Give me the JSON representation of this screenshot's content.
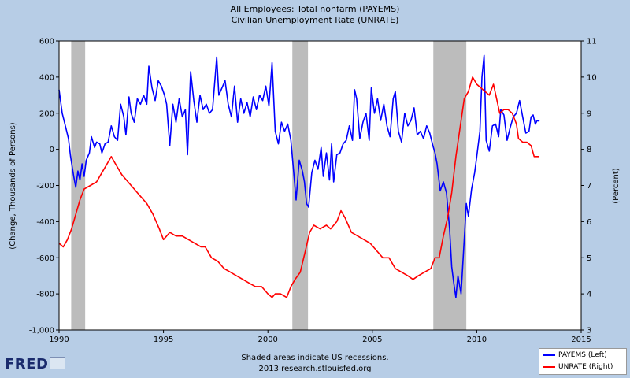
{
  "chart_data": {
    "type": "line",
    "title": "All Employees: Total nonfarm (PAYEMS)",
    "subtitle": "Civilian Unemployment Rate (UNRATE)",
    "ylabel_left": "(Change, Thousands of Persons)",
    "ylabel_right": "(Percent)",
    "xlim": [
      1990,
      2015
    ],
    "ylim_left": [
      -1000,
      600
    ],
    "ylim_right": [
      3,
      11
    ],
    "x_ticks": [
      "1990",
      "1995",
      "2000",
      "2005",
      "2010",
      "2015"
    ],
    "y_left_ticks": [
      "600",
      "400",
      "200",
      "0",
      "-200",
      "-400",
      "-600",
      "-800",
      "-1,000"
    ],
    "y_right_ticks": [
      "11",
      "10",
      "9",
      "8",
      "7",
      "6",
      "5",
      "4",
      "3"
    ],
    "recessions": [
      [
        1990.58,
        1991.25
      ],
      [
        2001.17,
        2001.92
      ],
      [
        2007.92,
        2009.5
      ]
    ],
    "series": [
      {
        "name": "PAYEMS (Left)",
        "color": "#0000ff",
        "points": [
          [
            1990.0,
            330
          ],
          [
            1990.15,
            200
          ],
          [
            1990.3,
            130
          ],
          [
            1990.45,
            60
          ],
          [
            1990.55,
            -40
          ],
          [
            1990.7,
            -150
          ],
          [
            1990.8,
            -210
          ],
          [
            1990.9,
            -120
          ],
          [
            1991.0,
            -170
          ],
          [
            1991.1,
            -80
          ],
          [
            1991.2,
            -150
          ],
          [
            1991.3,
            -60
          ],
          [
            1991.45,
            -20
          ],
          [
            1991.55,
            70
          ],
          [
            1991.7,
            10
          ],
          [
            1991.8,
            40
          ],
          [
            1991.95,
            30
          ],
          [
            1992.05,
            -20
          ],
          [
            1992.2,
            30
          ],
          [
            1992.35,
            40
          ],
          [
            1992.5,
            130
          ],
          [
            1992.65,
            70
          ],
          [
            1992.8,
            50
          ],
          [
            1992.95,
            250
          ],
          [
            1993.1,
            180
          ],
          [
            1993.2,
            80
          ],
          [
            1993.35,
            290
          ],
          [
            1993.45,
            200
          ],
          [
            1993.6,
            150
          ],
          [
            1993.75,
            280
          ],
          [
            1993.9,
            250
          ],
          [
            1994.05,
            300
          ],
          [
            1994.2,
            250
          ],
          [
            1994.3,
            460
          ],
          [
            1994.45,
            340
          ],
          [
            1994.6,
            270
          ],
          [
            1994.75,
            380
          ],
          [
            1994.9,
            350
          ],
          [
            1995.05,
            300
          ],
          [
            1995.15,
            250
          ],
          [
            1995.3,
            20
          ],
          [
            1995.45,
            250
          ],
          [
            1995.6,
            150
          ],
          [
            1995.75,
            280
          ],
          [
            1995.9,
            180
          ],
          [
            1996.05,
            220
          ],
          [
            1996.15,
            -30
          ],
          [
            1996.3,
            430
          ],
          [
            1996.45,
            270
          ],
          [
            1996.6,
            150
          ],
          [
            1996.75,
            300
          ],
          [
            1996.9,
            220
          ],
          [
            1997.05,
            250
          ],
          [
            1997.2,
            200
          ],
          [
            1997.35,
            220
          ],
          [
            1997.55,
            510
          ],
          [
            1997.65,
            300
          ],
          [
            1997.8,
            340
          ],
          [
            1997.95,
            380
          ],
          [
            1998.1,
            250
          ],
          [
            1998.25,
            180
          ],
          [
            1998.4,
            350
          ],
          [
            1998.55,
            150
          ],
          [
            1998.7,
            280
          ],
          [
            1998.85,
            200
          ],
          [
            1999.0,
            260
          ],
          [
            1999.15,
            180
          ],
          [
            1999.3,
            290
          ],
          [
            1999.45,
            220
          ],
          [
            1999.6,
            300
          ],
          [
            1999.75,
            270
          ],
          [
            1999.9,
            350
          ],
          [
            2000.05,
            240
          ],
          [
            2000.2,
            480
          ],
          [
            2000.35,
            100
          ],
          [
            2000.5,
            30
          ],
          [
            2000.65,
            150
          ],
          [
            2000.8,
            100
          ],
          [
            2000.95,
            140
          ],
          [
            2001.1,
            50
          ],
          [
            2001.25,
            -150
          ],
          [
            2001.35,
            -280
          ],
          [
            2001.5,
            -60
          ],
          [
            2001.65,
            -120
          ],
          [
            2001.75,
            -180
          ],
          [
            2001.85,
            -300
          ],
          [
            2001.95,
            -320
          ],
          [
            2002.1,
            -130
          ],
          [
            2002.25,
            -60
          ],
          [
            2002.4,
            -110
          ],
          [
            2002.55,
            10
          ],
          [
            2002.65,
            -150
          ],
          [
            2002.8,
            -20
          ],
          [
            2002.95,
            -170
          ],
          [
            2003.05,
            30
          ],
          [
            2003.15,
            -180
          ],
          [
            2003.3,
            -30
          ],
          [
            2003.45,
            -20
          ],
          [
            2003.6,
            30
          ],
          [
            2003.75,
            50
          ],
          [
            2003.9,
            130
          ],
          [
            2004.05,
            50
          ],
          [
            2004.15,
            330
          ],
          [
            2004.25,
            280
          ],
          [
            2004.4,
            60
          ],
          [
            2004.55,
            150
          ],
          [
            2004.7,
            200
          ],
          [
            2004.85,
            50
          ],
          [
            2004.95,
            340
          ],
          [
            2005.1,
            200
          ],
          [
            2005.25,
            280
          ],
          [
            2005.4,
            160
          ],
          [
            2005.55,
            250
          ],
          [
            2005.7,
            130
          ],
          [
            2005.85,
            70
          ],
          [
            2006.0,
            280
          ],
          [
            2006.1,
            320
          ],
          [
            2006.25,
            100
          ],
          [
            2006.4,
            40
          ],
          [
            2006.55,
            200
          ],
          [
            2006.7,
            130
          ],
          [
            2006.85,
            160
          ],
          [
            2007.0,
            230
          ],
          [
            2007.15,
            80
          ],
          [
            2007.3,
            100
          ],
          [
            2007.45,
            60
          ],
          [
            2007.6,
            130
          ],
          [
            2007.75,
            90
          ],
          [
            2007.9,
            20
          ],
          [
            2008.0,
            -20
          ],
          [
            2008.1,
            -80
          ],
          [
            2008.25,
            -230
          ],
          [
            2008.4,
            -180
          ],
          [
            2008.55,
            -240
          ],
          [
            2008.7,
            -440
          ],
          [
            2008.8,
            -650
          ],
          [
            2008.9,
            -740
          ],
          [
            2009.0,
            -820
          ],
          [
            2009.1,
            -700
          ],
          [
            2009.25,
            -800
          ],
          [
            2009.4,
            -500
          ],
          [
            2009.5,
            -300
          ],
          [
            2009.6,
            -370
          ],
          [
            2009.75,
            -220
          ],
          [
            2009.9,
            -130
          ],
          [
            2010.0,
            -40
          ],
          [
            2010.15,
            100
          ],
          [
            2010.25,
            400
          ],
          [
            2010.35,
            520
          ],
          [
            2010.45,
            50
          ],
          [
            2010.6,
            -10
          ],
          [
            2010.75,
            130
          ],
          [
            2010.9,
            140
          ],
          [
            2011.05,
            70
          ],
          [
            2011.15,
            220
          ],
          [
            2011.3,
            190
          ],
          [
            2011.45,
            50
          ],
          [
            2011.6,
            120
          ],
          [
            2011.75,
            180
          ],
          [
            2011.9,
            200
          ],
          [
            2012.05,
            270
          ],
          [
            2012.2,
            180
          ],
          [
            2012.35,
            90
          ],
          [
            2012.5,
            100
          ],
          [
            2012.6,
            180
          ],
          [
            2012.7,
            190
          ],
          [
            2012.8,
            140
          ],
          [
            2012.9,
            160
          ],
          [
            2013.0,
            155
          ]
        ]
      },
      {
        "name": "UNRATE (Right)",
        "color": "#ff0000",
        "points": [
          [
            1990.0,
            5.4
          ],
          [
            1990.2,
            5.3
          ],
          [
            1990.4,
            5.5
          ],
          [
            1990.6,
            5.8
          ],
          [
            1990.8,
            6.2
          ],
          [
            1991.0,
            6.6
          ],
          [
            1991.2,
            6.9
          ],
          [
            1991.5,
            7.0
          ],
          [
            1991.8,
            7.1
          ],
          [
            1992.0,
            7.3
          ],
          [
            1992.3,
            7.6
          ],
          [
            1992.5,
            7.8
          ],
          [
            1992.7,
            7.6
          ],
          [
            1993.0,
            7.3
          ],
          [
            1993.3,
            7.1
          ],
          [
            1993.6,
            6.9
          ],
          [
            1993.9,
            6.7
          ],
          [
            1994.2,
            6.5
          ],
          [
            1994.5,
            6.2
          ],
          [
            1994.8,
            5.8
          ],
          [
            1995.0,
            5.5
          ],
          [
            1995.3,
            5.7
          ],
          [
            1995.6,
            5.6
          ],
          [
            1995.9,
            5.6
          ],
          [
            1996.2,
            5.5
          ],
          [
            1996.5,
            5.4
          ],
          [
            1996.8,
            5.3
          ],
          [
            1997.0,
            5.3
          ],
          [
            1997.3,
            5.0
          ],
          [
            1997.6,
            4.9
          ],
          [
            1997.9,
            4.7
          ],
          [
            1998.2,
            4.6
          ],
          [
            1998.5,
            4.5
          ],
          [
            1998.8,
            4.4
          ],
          [
            1999.1,
            4.3
          ],
          [
            1999.4,
            4.2
          ],
          [
            1999.7,
            4.2
          ],
          [
            2000.0,
            4.0
          ],
          [
            2000.2,
            3.9
          ],
          [
            2000.35,
            4.0
          ],
          [
            2000.6,
            4.0
          ],
          [
            2000.9,
            3.9
          ],
          [
            2001.1,
            4.2
          ],
          [
            2001.3,
            4.4
          ],
          [
            2001.55,
            4.6
          ],
          [
            2001.8,
            5.2
          ],
          [
            2002.0,
            5.7
          ],
          [
            2002.2,
            5.9
          ],
          [
            2002.5,
            5.8
          ],
          [
            2002.8,
            5.9
          ],
          [
            2003.0,
            5.8
          ],
          [
            2003.3,
            6.0
          ],
          [
            2003.5,
            6.3
          ],
          [
            2003.7,
            6.1
          ],
          [
            2004.0,
            5.7
          ],
          [
            2004.3,
            5.6
          ],
          [
            2004.6,
            5.5
          ],
          [
            2004.9,
            5.4
          ],
          [
            2005.2,
            5.2
          ],
          [
            2005.5,
            5.0
          ],
          [
            2005.8,
            5.0
          ],
          [
            2006.1,
            4.7
          ],
          [
            2006.4,
            4.6
          ],
          [
            2006.7,
            4.5
          ],
          [
            2006.95,
            4.4
          ],
          [
            2007.2,
            4.5
          ],
          [
            2007.5,
            4.6
          ],
          [
            2007.8,
            4.7
          ],
          [
            2008.0,
            5.0
          ],
          [
            2008.2,
            5.0
          ],
          [
            2008.4,
            5.6
          ],
          [
            2008.6,
            6.1
          ],
          [
            2008.8,
            6.8
          ],
          [
            2009.0,
            7.8
          ],
          [
            2009.2,
            8.6
          ],
          [
            2009.4,
            9.4
          ],
          [
            2009.6,
            9.6
          ],
          [
            2009.8,
            10.0
          ],
          [
            2010.0,
            9.8
          ],
          [
            2010.2,
            9.7
          ],
          [
            2010.4,
            9.6
          ],
          [
            2010.6,
            9.5
          ],
          [
            2010.8,
            9.8
          ],
          [
            2010.95,
            9.4
          ],
          [
            2011.1,
            9.0
          ],
          [
            2011.3,
            9.1
          ],
          [
            2011.5,
            9.1
          ],
          [
            2011.7,
            9.0
          ],
          [
            2011.9,
            8.7
          ],
          [
            2012.0,
            8.3
          ],
          [
            2012.2,
            8.2
          ],
          [
            2012.4,
            8.2
          ],
          [
            2012.6,
            8.1
          ],
          [
            2012.75,
            7.8
          ],
          [
            2012.9,
            7.8
          ],
          [
            2013.0,
            7.8
          ]
        ]
      }
    ],
    "footer_line1": "Shaded areas indicate US recessions.",
    "footer_line2": "2013 research.stlouisfed.org",
    "logo": "FRED"
  }
}
